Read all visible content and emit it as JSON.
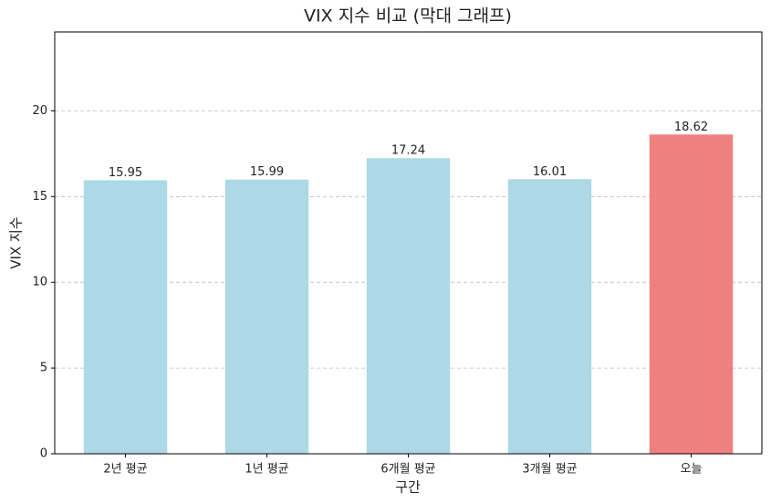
{
  "chart_data": {
    "type": "bar",
    "title": "VIX 지수 비교 (막대 그래프)",
    "x_label": "구간",
    "y_label": "VIX 지수",
    "categories": [
      "2년 평균",
      "1년 평균",
      "6개월 평균",
      "3개월 평균",
      "오늘"
    ],
    "values": [
      15.95,
      15.99,
      17.24,
      16.01,
      18.62
    ],
    "colors": [
      "#add8e6",
      "#add8e6",
      "#add8e6",
      "#add8e6",
      "#f08080"
    ],
    "ylim": [
      0,
      24.6
    ],
    "yticks": [
      0,
      5,
      10,
      15,
      20
    ],
    "grid": true
  }
}
